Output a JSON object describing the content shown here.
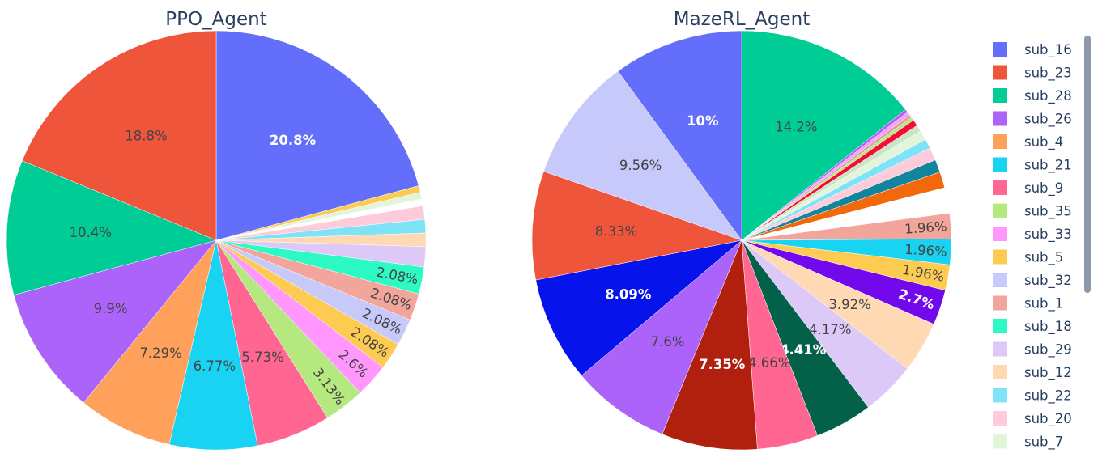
{
  "chart_data": [
    {
      "type": "pie",
      "title": "PPO_Agent",
      "slices": [
        {
          "name": "sub_16",
          "value": 20.8,
          "label": "20.8%",
          "color": "#636EFA"
        },
        {
          "name": "",
          "value": 0.52,
          "label": "",
          "color": "#FECB52"
        },
        {
          "name": "",
          "value": 0.52,
          "label": "",
          "color": "#E2F5DB"
        },
        {
          "name": "",
          "value": 0.52,
          "label": "",
          "color": "#FFFFFF"
        },
        {
          "name": "sub_20",
          "value": 1.04,
          "label": "",
          "color": "#FECBDB"
        },
        {
          "name": "sub_22",
          "value": 1.04,
          "label": "",
          "color": "#7FE3F7"
        },
        {
          "name": "sub_12",
          "value": 1.04,
          "label": "",
          "color": "#FFD8B4"
        },
        {
          "name": "sub_29",
          "value": 1.56,
          "label": "",
          "color": "#DCC9F8"
        },
        {
          "name": "sub_18",
          "value": 2.08,
          "label": "2.08%",
          "color": "#2CF9C4"
        },
        {
          "name": "sub_1",
          "value": 2.08,
          "label": "2.08%",
          "color": "#F2A59A"
        },
        {
          "name": "sub_32",
          "value": 2.08,
          "label": "2.08%",
          "color": "#C6C9F9"
        },
        {
          "name": "sub_5",
          "value": 2.08,
          "label": "2.08%",
          "color": "#FECB52"
        },
        {
          "name": "sub_33",
          "value": 2.6,
          "label": "2.6%",
          "color": "#FF97FF"
        },
        {
          "name": "sub_35",
          "value": 3.13,
          "label": "3.13%",
          "color": "#B6E880"
        },
        {
          "name": "sub_9",
          "value": 5.73,
          "label": "5.73%",
          "color": "#FF6692"
        },
        {
          "name": "sub_21",
          "value": 6.77,
          "label": "6.77%",
          "color": "#19D3F3"
        },
        {
          "name": "sub_4",
          "value": 7.29,
          "label": "7.29%",
          "color": "#FFA15A"
        },
        {
          "name": "sub_26",
          "value": 9.9,
          "label": "9.9%",
          "color": "#AB63FA"
        },
        {
          "name": "sub_28",
          "value": 10.4,
          "label": "10.4%",
          "color": "#00CC96"
        },
        {
          "name": "sub_23",
          "value": 18.8,
          "label": "18.8%",
          "color": "#EF553B"
        }
      ]
    },
    {
      "type": "pie",
      "title": "MazeRL_Agent",
      "slices": [
        {
          "name": "sub_28",
          "value": 14.2,
          "label": "14.2%",
          "color": "#00CC96"
        },
        {
          "name": "",
          "value": 0.25,
          "label": "",
          "color": "#AB63FA"
        },
        {
          "name": "",
          "value": 0.25,
          "label": "",
          "color": "#FF97FF"
        },
        {
          "name": "",
          "value": 0.25,
          "label": "",
          "color": "#D9A3A3"
        },
        {
          "name": "",
          "value": 0.25,
          "label": "",
          "color": "#B6E880"
        },
        {
          "name": "",
          "value": 0.49,
          "label": "",
          "color": "#F40D34"
        },
        {
          "name": "",
          "value": 0.49,
          "label": "",
          "color": "#C9E6C3"
        },
        {
          "name": "",
          "value": 0.74,
          "label": "",
          "color": "#E2F5DB"
        },
        {
          "name": "",
          "value": 0.74,
          "label": "",
          "color": "#7FE3F7"
        },
        {
          "name": "",
          "value": 0.98,
          "label": "",
          "color": "#FECBDB"
        },
        {
          "name": "",
          "value": 0.98,
          "label": "",
          "color": "#12849C"
        },
        {
          "name": "",
          "value": 1.23,
          "label": "",
          "color": "#F3680A"
        },
        {
          "name": "",
          "value": 1.96,
          "label": "",
          "color": "#FFFFFF"
        },
        {
          "name": "sub_1",
          "value": 1.96,
          "label": "1.96%",
          "color": "#F2A59A"
        },
        {
          "name": "sub_21",
          "value": 1.96,
          "label": "1.96%",
          "color": "#19D3F3"
        },
        {
          "name": "sub_5",
          "value": 1.96,
          "label": "1.96%",
          "color": "#FECB52"
        },
        {
          "name": "",
          "value": 2.7,
          "label": "2.7%",
          "color": "#7209ED"
        },
        {
          "name": "sub_12",
          "value": 3.92,
          "label": "3.92%",
          "color": "#FFD8B4"
        },
        {
          "name": "sub_29",
          "value": 4.17,
          "label": "4.17%",
          "color": "#DCC9F8"
        },
        {
          "name": "",
          "value": 4.41,
          "label": "4.41%",
          "color": "#036149"
        },
        {
          "name": "sub_9",
          "value": 4.66,
          "label": "4.66%",
          "color": "#FF6692"
        },
        {
          "name": "",
          "value": 7.35,
          "label": "7.35%",
          "color": "#B1200F"
        },
        {
          "name": "sub_26",
          "value": 7.6,
          "label": "7.6%",
          "color": "#AB63FA"
        },
        {
          "name": "",
          "value": 8.09,
          "label": "8.09%",
          "color": "#0613EA"
        },
        {
          "name": "sub_23",
          "value": 8.33,
          "label": "8.33%",
          "color": "#EF553B"
        },
        {
          "name": "sub_32",
          "value": 9.56,
          "label": "9.56%",
          "color": "#C6C9F9"
        },
        {
          "name": "sub_16",
          "value": 10.0,
          "label": "10%",
          "color": "#636EFA"
        }
      ]
    }
  ],
  "legend": {
    "position": "right",
    "items": [
      {
        "name": "sub_16",
        "color": "#636EFA"
      },
      {
        "name": "sub_23",
        "color": "#EF553B"
      },
      {
        "name": "sub_28",
        "color": "#00CC96"
      },
      {
        "name": "sub_26",
        "color": "#AB63FA"
      },
      {
        "name": "sub_4",
        "color": "#FFA15A"
      },
      {
        "name": "sub_21",
        "color": "#19D3F3"
      },
      {
        "name": "sub_9",
        "color": "#FF6692"
      },
      {
        "name": "sub_35",
        "color": "#B6E880"
      },
      {
        "name": "sub_33",
        "color": "#FF97FF"
      },
      {
        "name": "sub_5",
        "color": "#FECB52"
      },
      {
        "name": "sub_32",
        "color": "#C6C9F9"
      },
      {
        "name": "sub_1",
        "color": "#F2A59A"
      },
      {
        "name": "sub_18",
        "color": "#2CF9C4"
      },
      {
        "name": "sub_29",
        "color": "#DCC9F8"
      },
      {
        "name": "sub_12",
        "color": "#FFD8B4"
      },
      {
        "name": "sub_22",
        "color": "#7FE3F7"
      },
      {
        "name": "sub_20",
        "color": "#FECBDB"
      },
      {
        "name": "sub_7",
        "color": "#E2F5DB"
      }
    ]
  },
  "colors": {
    "title": "#2a3f5f",
    "dark_label": "#444444",
    "light_label": "#ffffff",
    "slice_border": "#ffffff",
    "scrollbar": "#8f97ad"
  }
}
